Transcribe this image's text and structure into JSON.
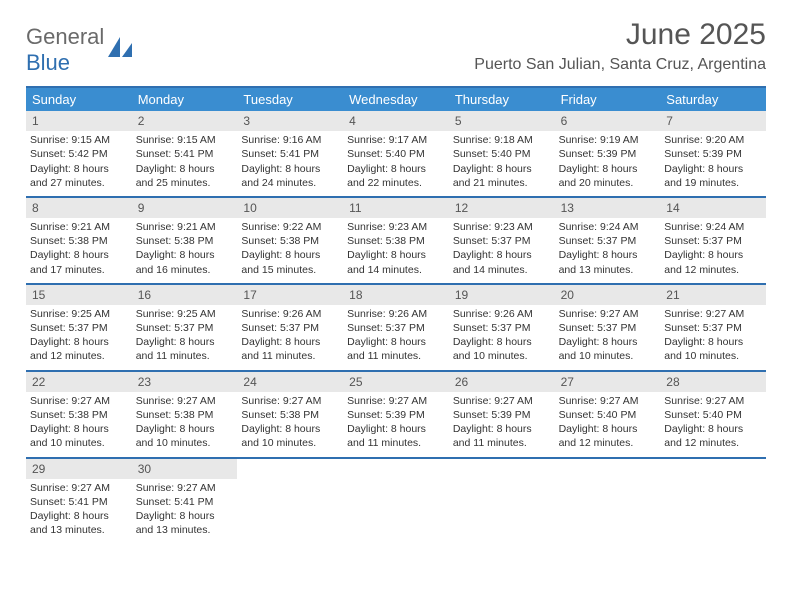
{
  "logo": {
    "text1": "General",
    "text2": "Blue"
  },
  "title": "June 2025",
  "location": "Puerto San Julian, Santa Cruz, Argentina",
  "colors": {
    "header_bg": "#3a8dd0",
    "header_text": "#ffffff",
    "rule": "#2f6fb0",
    "daynum_bg": "#e8e8e8",
    "text": "#333333",
    "logo_gray": "#6a6a6a",
    "logo_blue": "#2f6fb0"
  },
  "dayNames": [
    "Sunday",
    "Monday",
    "Tuesday",
    "Wednesday",
    "Thursday",
    "Friday",
    "Saturday"
  ],
  "days": [
    {
      "n": "1",
      "sr": "Sunrise: 9:15 AM",
      "ss": "Sunset: 5:42 PM",
      "dl1": "Daylight: 8 hours",
      "dl2": "and 27 minutes."
    },
    {
      "n": "2",
      "sr": "Sunrise: 9:15 AM",
      "ss": "Sunset: 5:41 PM",
      "dl1": "Daylight: 8 hours",
      "dl2": "and 25 minutes."
    },
    {
      "n": "3",
      "sr": "Sunrise: 9:16 AM",
      "ss": "Sunset: 5:41 PM",
      "dl1": "Daylight: 8 hours",
      "dl2": "and 24 minutes."
    },
    {
      "n": "4",
      "sr": "Sunrise: 9:17 AM",
      "ss": "Sunset: 5:40 PM",
      "dl1": "Daylight: 8 hours",
      "dl2": "and 22 minutes."
    },
    {
      "n": "5",
      "sr": "Sunrise: 9:18 AM",
      "ss": "Sunset: 5:40 PM",
      "dl1": "Daylight: 8 hours",
      "dl2": "and 21 minutes."
    },
    {
      "n": "6",
      "sr": "Sunrise: 9:19 AM",
      "ss": "Sunset: 5:39 PM",
      "dl1": "Daylight: 8 hours",
      "dl2": "and 20 minutes."
    },
    {
      "n": "7",
      "sr": "Sunrise: 9:20 AM",
      "ss": "Sunset: 5:39 PM",
      "dl1": "Daylight: 8 hours",
      "dl2": "and 19 minutes."
    },
    {
      "n": "8",
      "sr": "Sunrise: 9:21 AM",
      "ss": "Sunset: 5:38 PM",
      "dl1": "Daylight: 8 hours",
      "dl2": "and 17 minutes."
    },
    {
      "n": "9",
      "sr": "Sunrise: 9:21 AM",
      "ss": "Sunset: 5:38 PM",
      "dl1": "Daylight: 8 hours",
      "dl2": "and 16 minutes."
    },
    {
      "n": "10",
      "sr": "Sunrise: 9:22 AM",
      "ss": "Sunset: 5:38 PM",
      "dl1": "Daylight: 8 hours",
      "dl2": "and 15 minutes."
    },
    {
      "n": "11",
      "sr": "Sunrise: 9:23 AM",
      "ss": "Sunset: 5:38 PM",
      "dl1": "Daylight: 8 hours",
      "dl2": "and 14 minutes."
    },
    {
      "n": "12",
      "sr": "Sunrise: 9:23 AM",
      "ss": "Sunset: 5:37 PM",
      "dl1": "Daylight: 8 hours",
      "dl2": "and 14 minutes."
    },
    {
      "n": "13",
      "sr": "Sunrise: 9:24 AM",
      "ss": "Sunset: 5:37 PM",
      "dl1": "Daylight: 8 hours",
      "dl2": "and 13 minutes."
    },
    {
      "n": "14",
      "sr": "Sunrise: 9:24 AM",
      "ss": "Sunset: 5:37 PM",
      "dl1": "Daylight: 8 hours",
      "dl2": "and 12 minutes."
    },
    {
      "n": "15",
      "sr": "Sunrise: 9:25 AM",
      "ss": "Sunset: 5:37 PM",
      "dl1": "Daylight: 8 hours",
      "dl2": "and 12 minutes."
    },
    {
      "n": "16",
      "sr": "Sunrise: 9:25 AM",
      "ss": "Sunset: 5:37 PM",
      "dl1": "Daylight: 8 hours",
      "dl2": "and 11 minutes."
    },
    {
      "n": "17",
      "sr": "Sunrise: 9:26 AM",
      "ss": "Sunset: 5:37 PM",
      "dl1": "Daylight: 8 hours",
      "dl2": "and 11 minutes."
    },
    {
      "n": "18",
      "sr": "Sunrise: 9:26 AM",
      "ss": "Sunset: 5:37 PM",
      "dl1": "Daylight: 8 hours",
      "dl2": "and 11 minutes."
    },
    {
      "n": "19",
      "sr": "Sunrise: 9:26 AM",
      "ss": "Sunset: 5:37 PM",
      "dl1": "Daylight: 8 hours",
      "dl2": "and 10 minutes."
    },
    {
      "n": "20",
      "sr": "Sunrise: 9:27 AM",
      "ss": "Sunset: 5:37 PM",
      "dl1": "Daylight: 8 hours",
      "dl2": "and 10 minutes."
    },
    {
      "n": "21",
      "sr": "Sunrise: 9:27 AM",
      "ss": "Sunset: 5:37 PM",
      "dl1": "Daylight: 8 hours",
      "dl2": "and 10 minutes."
    },
    {
      "n": "22",
      "sr": "Sunrise: 9:27 AM",
      "ss": "Sunset: 5:38 PM",
      "dl1": "Daylight: 8 hours",
      "dl2": "and 10 minutes."
    },
    {
      "n": "23",
      "sr": "Sunrise: 9:27 AM",
      "ss": "Sunset: 5:38 PM",
      "dl1": "Daylight: 8 hours",
      "dl2": "and 10 minutes."
    },
    {
      "n": "24",
      "sr": "Sunrise: 9:27 AM",
      "ss": "Sunset: 5:38 PM",
      "dl1": "Daylight: 8 hours",
      "dl2": "and 10 minutes."
    },
    {
      "n": "25",
      "sr": "Sunrise: 9:27 AM",
      "ss": "Sunset: 5:39 PM",
      "dl1": "Daylight: 8 hours",
      "dl2": "and 11 minutes."
    },
    {
      "n": "26",
      "sr": "Sunrise: 9:27 AM",
      "ss": "Sunset: 5:39 PM",
      "dl1": "Daylight: 8 hours",
      "dl2": "and 11 minutes."
    },
    {
      "n": "27",
      "sr": "Sunrise: 9:27 AM",
      "ss": "Sunset: 5:40 PM",
      "dl1": "Daylight: 8 hours",
      "dl2": "and 12 minutes."
    },
    {
      "n": "28",
      "sr": "Sunrise: 9:27 AM",
      "ss": "Sunset: 5:40 PM",
      "dl1": "Daylight: 8 hours",
      "dl2": "and 12 minutes."
    },
    {
      "n": "29",
      "sr": "Sunrise: 9:27 AM",
      "ss": "Sunset: 5:41 PM",
      "dl1": "Daylight: 8 hours",
      "dl2": "and 13 minutes."
    },
    {
      "n": "30",
      "sr": "Sunrise: 9:27 AM",
      "ss": "Sunset: 5:41 PM",
      "dl1": "Daylight: 8 hours",
      "dl2": "and 13 minutes."
    }
  ]
}
